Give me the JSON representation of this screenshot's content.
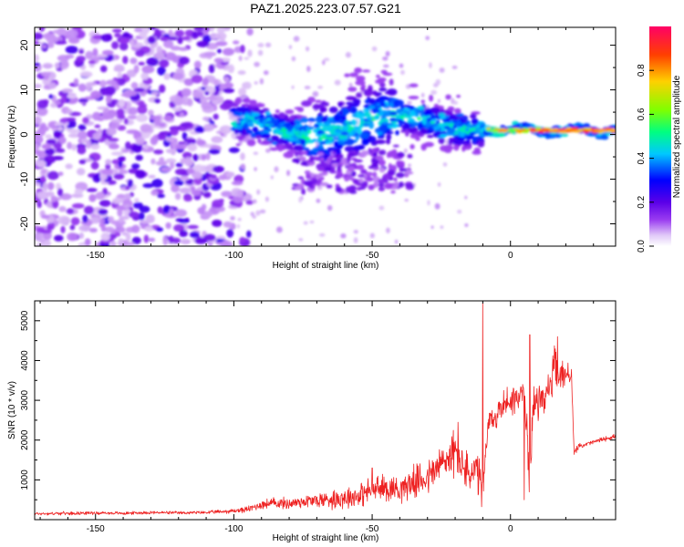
{
  "figure_title": "PAZ1.2025.223.07.57.G21",
  "colors": {
    "snr_line": "#ee2222",
    "axis": "#000000",
    "background": "#ffffff"
  },
  "chart_data": [
    {
      "type": "heatmap",
      "title": "",
      "xlabel": "Height of straight line (km)",
      "ylabel": "Frequency (Hz)",
      "xlim": [
        -172,
        38
      ],
      "ylim": [
        -25,
        24
      ],
      "x_ticks": [
        -150,
        -100,
        -50,
        0
      ],
      "x_tick_labels": [
        "-150",
        "-100",
        "-50",
        "0"
      ],
      "y_ticks": [
        -20,
        -10,
        0,
        10,
        20
      ],
      "y_tick_labels": [
        "-20",
        "-10",
        "0",
        "10",
        "20"
      ],
      "grid": false,
      "colorbar": {
        "label": "Normalized spectral amplitude",
        "range": [
          0,
          1
        ],
        "ticks": [
          0,
          0.2,
          0.4,
          0.6,
          0.8
        ],
        "tick_labels": [
          "0.0",
          "0.2",
          "0.4",
          "0.6",
          "0.8"
        ],
        "colormap": [
          "#ffffff",
          "#e0c8f8",
          "#9a3cf0",
          "#5a00e8",
          "#0000ff",
          "#00c8ff",
          "#00ff80",
          "#80ff00",
          "#ffd000",
          "#ff4000",
          "#ff0066"
        ]
      },
      "features": [
        {
          "height_km": [
            -172,
            -95
          ],
          "frequency_hz": [
            -25,
            24
          ],
          "description_level": "scattered",
          "amplitude": 0.2
        },
        {
          "height_km": [
            -100,
            -10
          ],
          "frequency_hz": [
            -4,
            6
          ],
          "amplitude": 0.35
        },
        {
          "height_km": [
            -10,
            38
          ],
          "frequency_hz": [
            0.5,
            1.5
          ],
          "amplitude": 1.0
        }
      ]
    },
    {
      "type": "line",
      "title": "",
      "xlabel": "Height of straight line (km)",
      "ylabel": "SNR (10 * v/v)",
      "xlim": [
        -172,
        38
      ],
      "ylim": [
        0,
        5500
      ],
      "x_ticks": [
        -150,
        -100,
        -50,
        0
      ],
      "x_tick_labels": [
        "-150",
        "-100",
        "-50",
        "0"
      ],
      "y_ticks": [
        1000,
        2000,
        3000,
        4000,
        5000
      ],
      "y_tick_labels": [
        "1000",
        "2000",
        "3000",
        "4000",
        "5000"
      ],
      "grid": false,
      "series": [
        {
          "x": [
            -172,
            -160,
            -150,
            -140,
            -130,
            -120,
            -110,
            -100,
            -95,
            -90,
            -85,
            -80,
            -75,
            -70,
            -65,
            -60,
            -55,
            -50,
            -45,
            -40,
            -35,
            -30,
            -25,
            -20,
            -15,
            -12,
            -10,
            -8,
            -5,
            -3,
            0,
            3,
            5,
            6,
            7,
            8,
            10,
            12,
            15,
            16,
            17,
            18,
            20,
            22,
            23,
            25,
            30,
            35,
            38
          ],
          "y": [
            150,
            160,
            170,
            160,
            180,
            170,
            180,
            220,
            260,
            380,
            420,
            400,
            460,
            480,
            520,
            560,
            600,
            750,
            800,
            780,
            950,
            1050,
            1400,
            1700,
            1100,
            1200,
            700,
            2400,
            2600,
            2900,
            3000,
            3100,
            3200,
            2000,
            1000,
            2800,
            3000,
            3100,
            3400,
            4000,
            3500,
            3600,
            3700,
            3600,
            1700,
            1850,
            1950,
            2050,
            2100
          ],
          "noise_amplitude": [
            40,
            40,
            40,
            40,
            40,
            40,
            40,
            60,
            80,
            120,
            150,
            150,
            180,
            200,
            250,
            300,
            300,
            350,
            350,
            350,
            400,
            450,
            550,
            600,
            500,
            600,
            500,
            400,
            350,
            350,
            400,
            400,
            500,
            600,
            600,
            500,
            450,
            450,
            450,
            500,
            450,
            400,
            350,
            300,
            80,
            60,
            60,
            60,
            60
          ],
          "spikes": [
            {
              "x": -10,
              "y": 5450
            },
            {
              "x": 7,
              "y": 4650
            },
            {
              "x": 17,
              "y": 4600
            },
            {
              "x": -19,
              "y": 2450
            },
            {
              "x": 5,
              "y": 500
            },
            {
              "x": -50,
              "y": 1300
            }
          ]
        }
      ]
    }
  ]
}
